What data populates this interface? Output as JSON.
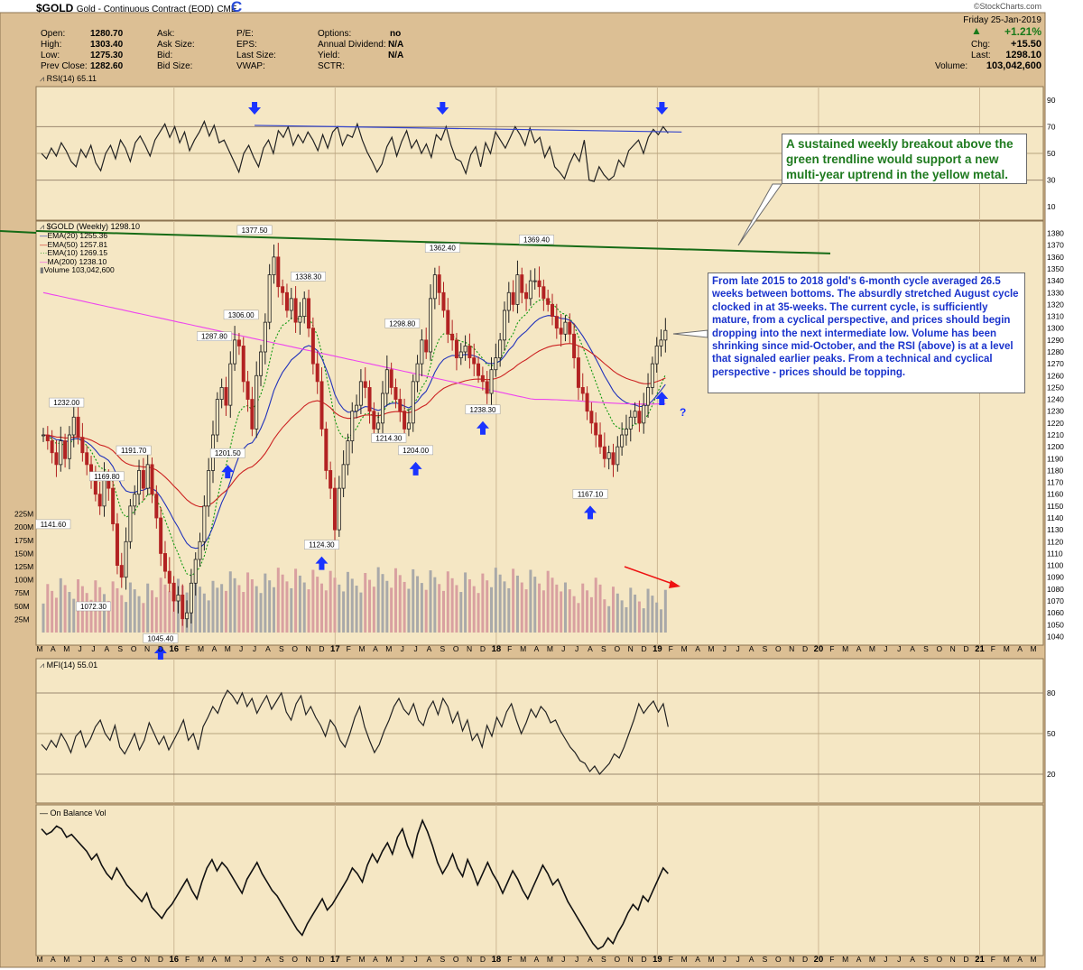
{
  "header": {
    "symbol": "$GOLD",
    "name": "Gold - Continuous Contract (EOD)",
    "exchange": "CME",
    "logo": "©StockCharts.com",
    "date": "Friday  25-Jan-2019",
    "stats": {
      "open_label": "Open:",
      "open": "1280.70",
      "high_label": "High:",
      "high": "1303.40",
      "low_label": "Low:",
      "low": "1275.30",
      "prev_label": "Prev Close:",
      "prev": "1282.60",
      "ask_label": "Ask:",
      "ask_size_label": "Ask Size:",
      "bid_label": "Bid:",
      "bid_size_label": "Bid Size:",
      "pe_label": "P/E:",
      "eps_label": "EPS:",
      "last_size_label": "Last Size:",
      "vwap_label": "VWAP:",
      "options_label": "Options:",
      "options": "no",
      "div_label": "Annual Dividend:",
      "div": "N/A",
      "yield_label": "Yield:",
      "yield": "N/A",
      "sctr_label": "SCTR:",
      "pct_change": "+1.21%",
      "chg_label": "Chg:",
      "chg": "+15.50",
      "last_label": "Last:",
      "last": "1298.10",
      "volume_label": "Volume:",
      "volume": "103,042,600"
    }
  },
  "annotations": {
    "trend_note": "A sustained weekly breakout above the green trendline would support a new multi-year uptrend in the yellow metal.",
    "cycle_note": "From late 2015 to 2018 gold's 6-month cycle averaged 26.5 weeks between bottoms. The absurdly stretched August cycle clocked in at 35-weeks. The current cycle, is sufficiently mature, from a cyclical perspective, and prices should begin dropping into the next intermediate low. Volume has been shrinking since mid-October, and the RSI (above) is at a level that signaled earlier peaks. From a technical and cyclical perspective - prices should be topping.",
    "question_mark": "?"
  },
  "colors": {
    "panel_bg": "#f5e7c4",
    "frame_bg": "#dcbf94",
    "price_bar": "#b22222",
    "ema20": "#2233bb",
    "ema50": "#cc2222",
    "ema10": "#119911",
    "ma200": "#ee44ee",
    "volume_up": "#d9a0a0",
    "volume_down": "#a9a9a9",
    "trendline": "#166b16",
    "arrow": "#1a33ff"
  },
  "chart_data": [
    {
      "panel": "rsi",
      "type": "line",
      "label": "RSI(14) 65.11",
      "value": 65.11,
      "ylim": [
        0,
        100
      ],
      "yticks": [
        90,
        70,
        50,
        30,
        10
      ],
      "series": [
        {
          "name": "RSI(14)",
          "values": [
            50,
            46,
            54,
            48,
            58,
            52,
            44,
            40,
            53,
            47,
            56,
            43,
            37,
            50,
            56,
            46,
            60,
            54,
            44,
            58,
            63,
            56,
            48,
            60,
            66,
            72,
            62,
            70,
            58,
            66,
            52,
            60,
            66,
            74,
            63,
            71,
            58,
            60,
            52,
            44,
            36,
            50,
            56,
            47,
            40,
            54,
            60,
            50,
            67,
            62,
            70,
            56,
            64,
            58,
            66,
            60,
            52,
            64,
            54,
            66,
            70,
            56,
            64,
            62,
            72,
            60,
            51,
            44,
            36,
            42,
            55,
            62,
            48,
            59,
            67,
            54,
            60,
            50,
            57,
            47,
            64,
            60,
            70,
            56,
            46,
            44,
            35,
            49,
            55,
            40,
            58,
            50,
            66,
            60,
            54,
            62,
            70,
            64,
            56,
            69,
            58,
            62,
            47,
            55,
            40,
            36,
            31,
            42,
            50,
            44,
            60,
            30,
            29,
            40,
            34,
            30,
            33,
            45,
            40,
            52,
            56,
            60,
            50,
            62,
            68,
            64,
            70,
            65.11
          ]
        }
      ],
      "trendline": {
        "start": {
          "x": "2016-07",
          "y": 71
        },
        "end": {
          "x": "2019-02",
          "y": 66
        }
      },
      "down_arrows": [
        "2016-07",
        "2017-09",
        "2019-01"
      ]
    },
    {
      "panel": "price",
      "type": "candlestick",
      "title": "$GOLD (Weekly) 1298.10",
      "ylim": [
        1035,
        1385
      ],
      "yticks": [
        1380,
        1370,
        1360,
        1350,
        1340,
        1330,
        1320,
        1310,
        1300,
        1290,
        1280,
        1270,
        1260,
        1250,
        1240,
        1230,
        1220,
        1210,
        1200,
        1190,
        1180,
        1170,
        1160,
        1150,
        1140,
        1130,
        1120,
        1110,
        1100,
        1090,
        1080,
        1070,
        1060,
        1050,
        1040
      ],
      "legend": [
        {
          "name": "EMA(20) 1255.36",
          "color": "#2233bb",
          "style": "solid"
        },
        {
          "name": "EMA(50) 1257.81",
          "color": "#cc2222",
          "style": "solid"
        },
        {
          "name": "EMA(10) 1269.15",
          "color": "#119911",
          "style": "dotted"
        },
        {
          "name": "MA(200) 1238.10",
          "color": "#ee44ee",
          "style": "solid"
        },
        {
          "name": "Volume 103,042,600",
          "color": "#a9a9a9",
          "style": "bar"
        }
      ],
      "close": [
        1210,
        1205,
        1195,
        1185,
        1205,
        1190,
        1210,
        1225,
        1208,
        1195,
        1185,
        1175,
        1160,
        1150,
        1175,
        1165,
        1135,
        1100,
        1090,
        1120,
        1150,
        1160,
        1180,
        1165,
        1185,
        1160,
        1140,
        1110,
        1095,
        1085,
        1070,
        1075,
        1055,
        1060,
        1085,
        1105,
        1120,
        1150,
        1180,
        1210,
        1240,
        1250,
        1235,
        1270,
        1290,
        1285,
        1255,
        1240,
        1215,
        1260,
        1280,
        1305,
        1345,
        1360,
        1335,
        1330,
        1315,
        1325,
        1305,
        1310,
        1325,
        1300,
        1270,
        1255,
        1215,
        1180,
        1165,
        1130,
        1165,
        1185,
        1205,
        1230,
        1235,
        1255,
        1250,
        1230,
        1215,
        1220,
        1245,
        1265,
        1250,
        1240,
        1230,
        1215,
        1220,
        1255,
        1270,
        1290,
        1280,
        1325,
        1345,
        1330,
        1315,
        1295,
        1290,
        1275,
        1280,
        1285,
        1275,
        1270,
        1260,
        1255,
        1245,
        1265,
        1275,
        1290,
        1315,
        1330,
        1320,
        1345,
        1330,
        1325,
        1340,
        1340,
        1335,
        1325,
        1320,
        1310,
        1300,
        1295,
        1305,
        1295,
        1275,
        1250,
        1245,
        1230,
        1220,
        1210,
        1200,
        1190,
        1195,
        1185,
        1200,
        1210,
        1215,
        1225,
        1230,
        1220,
        1235,
        1250,
        1270,
        1285,
        1290,
        1298.1
      ],
      "high_labels": [
        {
          "x": "2016-07",
          "label": "1377.50",
          "value": 1377.5
        },
        {
          "x": "2016-04",
          "label": "1287.80",
          "value": 1287.8
        },
        {
          "x": "2016-06",
          "label": "1306.00",
          "value": 1306.0
        },
        {
          "x": "2016-11",
          "label": "1338.30",
          "value": 1338.3
        },
        {
          "x": "2017-06",
          "label": "1298.80",
          "value": 1298.8
        },
        {
          "x": "2017-09",
          "label": "1362.40",
          "value": 1362.4
        },
        {
          "x": "2018-04",
          "label": "1369.40",
          "value": 1369.4
        },
        {
          "x": "2015-05",
          "label": "1232.00",
          "value": 1232.0
        },
        {
          "x": "2015-10",
          "label": "1191.70",
          "value": 1191.7
        },
        {
          "x": "2015-08",
          "label": "1169.80",
          "value": 1169.8
        }
      ],
      "low_labels": [
        {
          "x": "2015-04",
          "label": "1141.60",
          "value": 1141.6
        },
        {
          "x": "2015-07",
          "label": "1072.30",
          "value": 1072.3
        },
        {
          "x": "2015-12",
          "label": "1045.40",
          "value": 1045.4
        },
        {
          "x": "2016-05",
          "label": "1201.50",
          "value": 1201.5
        },
        {
          "x": "2016-12",
          "label": "1124.30",
          "value": 1124.3
        },
        {
          "x": "2017-05",
          "label": "1214.30",
          "value": 1214.3
        },
        {
          "x": "2017-07",
          "label": "1204.00",
          "value": 1204.0
        },
        {
          "x": "2017-12",
          "label": "1238.30",
          "value": 1238.3
        },
        {
          "x": "2018-08",
          "label": "1167.10",
          "value": 1167.1
        }
      ],
      "up_arrows": [
        "2015-12",
        "2016-05",
        "2016-12",
        "2017-07",
        "2017-12",
        "2018-08",
        "2019-02"
      ],
      "volume": {
        "ylim": [
          0,
          250
        ],
        "unit": "M",
        "yticks": [
          "225M",
          "200M",
          "175M",
          "150M",
          "125M",
          "100M",
          "75M",
          "50M",
          "25M"
        ]
      },
      "trendline": {
        "start": {
          "x": "2015-03",
          "y": 1382
        },
        "end": {
          "x": "2019-09",
          "y": 1363
        }
      }
    },
    {
      "panel": "mfi",
      "type": "line",
      "label": "MFI(14) 55.01",
      "value": 55.01,
      "ylim": [
        0,
        100
      ],
      "yticks": [
        80,
        50,
        20
      ],
      "series": [
        {
          "name": "MFI(14)",
          "values": [
            42,
            38,
            45,
            40,
            50,
            44,
            36,
            48,
            52,
            40,
            46,
            55,
            60,
            50,
            45,
            56,
            40,
            35,
            42,
            50,
            38,
            45,
            58,
            50,
            42,
            48,
            38,
            45,
            52,
            60,
            45,
            50,
            38,
            55,
            62,
            70,
            65,
            75,
            82,
            78,
            72,
            80,
            70,
            76,
            65,
            72,
            78,
            68,
            74,
            80,
            66,
            60,
            72,
            78,
            64,
            70,
            62,
            56,
            48,
            60,
            55,
            45,
            40,
            50,
            62,
            70,
            55,
            45,
            36,
            42,
            52,
            60,
            70,
            76,
            68,
            64,
            72,
            60,
            56,
            68,
            74,
            64,
            76,
            70,
            58,
            66,
            52,
            60,
            45,
            50,
            40,
            56,
            48,
            62,
            55,
            66,
            72,
            60,
            50,
            58,
            68,
            62,
            70,
            66,
            58,
            60,
            52,
            46,
            40,
            36,
            30,
            28,
            22,
            26,
            20,
            24,
            28,
            35,
            32,
            40,
            50,
            60,
            72,
            65,
            70,
            74,
            66,
            72,
            55.01
          ]
        }
      ]
    },
    {
      "panel": "obv",
      "type": "line",
      "label": "On Balance Vol",
      "series": [
        {
          "name": "On Balance Vol",
          "values": [
            88,
            84,
            86,
            90,
            88,
            82,
            84,
            80,
            76,
            72,
            66,
            70,
            62,
            56,
            52,
            60,
            54,
            48,
            44,
            40,
            36,
            42,
            32,
            28,
            24,
            30,
            34,
            40,
            46,
            52,
            44,
            38,
            50,
            60,
            66,
            58,
            64,
            60,
            54,
            48,
            42,
            52,
            58,
            64,
            56,
            50,
            44,
            40,
            34,
            28,
            22,
            16,
            12,
            20,
            26,
            32,
            38,
            30,
            34,
            40,
            46,
            52,
            60,
            56,
            50,
            62,
            70,
            64,
            72,
            78,
            70,
            82,
            88,
            76,
            68,
            84,
            94,
            86,
            76,
            64,
            56,
            62,
            70,
            60,
            54,
            66,
            58,
            48,
            56,
            64,
            56,
            50,
            42,
            50,
            58,
            52,
            44,
            38,
            46,
            54,
            62,
            56,
            48,
            52,
            44,
            36,
            30,
            24,
            18,
            12,
            6,
            2,
            4,
            10,
            6,
            14,
            20,
            28,
            34,
            30,
            40,
            36,
            44,
            52,
            60,
            56
          ]
        }
      ]
    }
  ],
  "x_axis": [
    "M",
    "A",
    "M",
    "J",
    "J",
    "A",
    "S",
    "O",
    "N",
    "D",
    "16",
    "F",
    "M",
    "A",
    "M",
    "J",
    "J",
    "A",
    "S",
    "O",
    "N",
    "D",
    "17",
    "F",
    "M",
    "A",
    "M",
    "J",
    "J",
    "A",
    "S",
    "O",
    "N",
    "D",
    "18",
    "F",
    "M",
    "A",
    "M",
    "J",
    "J",
    "A",
    "S",
    "O",
    "N",
    "D",
    "19",
    "F",
    "M",
    "A",
    "M",
    "J",
    "J",
    "A",
    "S",
    "O",
    "N",
    "D",
    "20",
    "F",
    "M",
    "A",
    "M",
    "J",
    "J",
    "A",
    "S",
    "O",
    "N",
    "D",
    "21",
    "F",
    "M",
    "A",
    "M"
  ]
}
